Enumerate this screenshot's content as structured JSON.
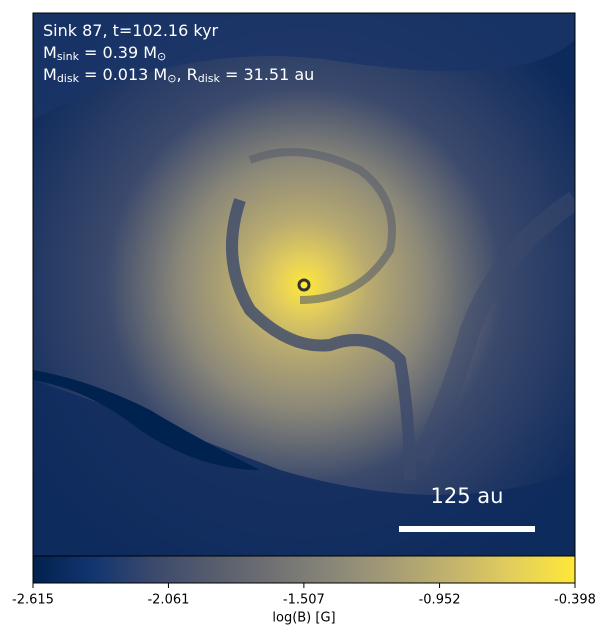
{
  "chart_data": {
    "type": "image",
    "annotations": [
      [
        "Sink 87, t=102.16 kyr"
      ],
      [
        "M",
        "sink",
        " = 0.39 M",
        "⊙"
      ],
      [
        "M",
        "disk",
        " = 0.013 M",
        "⊙",
        ", R",
        "disk",
        " = 31.51 au"
      ]
    ],
    "scale_bar_label": "125 au",
    "colorbar": {
      "label": "log(B) [G]",
      "clim": [
        -2.615,
        -0.398
      ],
      "ticks": [
        -2.615,
        -2.061,
        -1.507,
        -0.952,
        -0.398
      ],
      "colors": [
        "#00224e",
        "#123570",
        "#3b496c",
        "#575d6d",
        "#707173",
        "#8a8779",
        "#a69d75",
        "#c4b56c",
        "#e4cf5b",
        "#fee838"
      ]
    }
  }
}
